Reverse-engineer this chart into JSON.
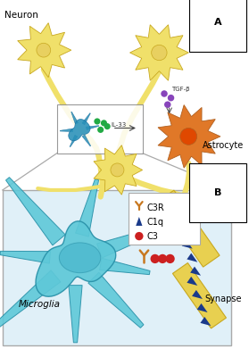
{
  "bg_color": "#ffffff",
  "label_A": "A",
  "label_B": "B",
  "neuron_label": "Neuron",
  "astrocyte_label": "Astrocyte",
  "microglia_label": "Microglia",
  "synapse_label": "Synapse",
  "il33_label": "IL-33",
  "tgfb_label": "TGF-β",
  "legend_items": [
    "C3R",
    "C1q",
    "C3"
  ],
  "neuron_color": "#f0e06a",
  "neuron_outline": "#c8a820",
  "neuron_center_color": "#e8d060",
  "astrocyte_color": "#e07828",
  "astrocyte_center_color": "#e04800",
  "microglia_fill": "#5ec8d8",
  "microglia_outline": "#2890a8",
  "microglia_nucleus": "#40b0c8",
  "small_microglia_color": "#2890b8",
  "synapse_color": "#e8d050",
  "synapse_outline": "#c8a820",
  "c3r_color": "#c87820",
  "c1q_color": "#1a3a8a",
  "c3_color": "#cc2020",
  "tgfb_dot_color": "#8844bb",
  "il33_dot_color": "#22aa44",
  "zoom_line_color": "#aaaaaa",
  "border_color": "#aaaaaa",
  "panel_b_fill": "#e0f0f8"
}
